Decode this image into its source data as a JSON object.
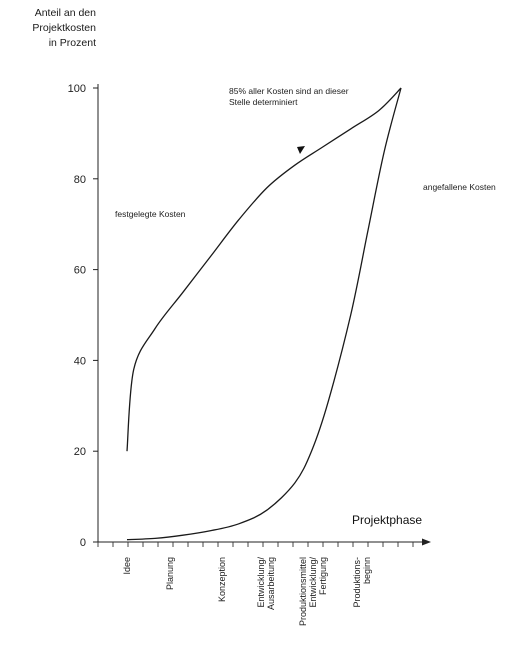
{
  "chart_data": {
    "type": "line",
    "ylabel_lines": [
      "Anteil an den",
      "Projektkosten",
      "in Prozent"
    ],
    "xlabel": "Projektphase",
    "ylim": [
      0,
      100
    ],
    "yticks": [
      0,
      20,
      40,
      60,
      80,
      100
    ],
    "phases": [
      "Idee",
      "Planung",
      "Konzeption",
      "Entwicklung/ Ausarbeitung",
      "Produktionsmittel Entwicklung/ Fertigung",
      "Produktions- beginn"
    ],
    "annotations": {
      "peak": "85% aller Kosten sind an dieser Stelle determiniert",
      "fixed": "festgelegte Kosten",
      "incurred": "angefallene Kosten"
    },
    "series": [
      {
        "name": "festgelegte Kosten",
        "x": [
          0.0,
          0.12,
          0.5,
          1.0,
          1.5,
          2.0,
          2.5,
          3.0,
          3.5,
          4.0,
          4.5,
          4.9
        ],
        "y": [
          20,
          38,
          47,
          55,
          63,
          71,
          78,
          83,
          87,
          91,
          95,
          100
        ]
      },
      {
        "name": "angefallene Kosten",
        "x": [
          0.0,
          0.5,
          1.0,
          1.5,
          2.0,
          2.5,
          3.0,
          3.3,
          3.6,
          4.0,
          4.3,
          4.6,
          4.9
        ],
        "y": [
          0.5,
          0.8,
          1.5,
          2.5,
          4,
          7,
          13,
          20,
          31,
          50,
          68,
          86,
          100
        ]
      }
    ]
  }
}
